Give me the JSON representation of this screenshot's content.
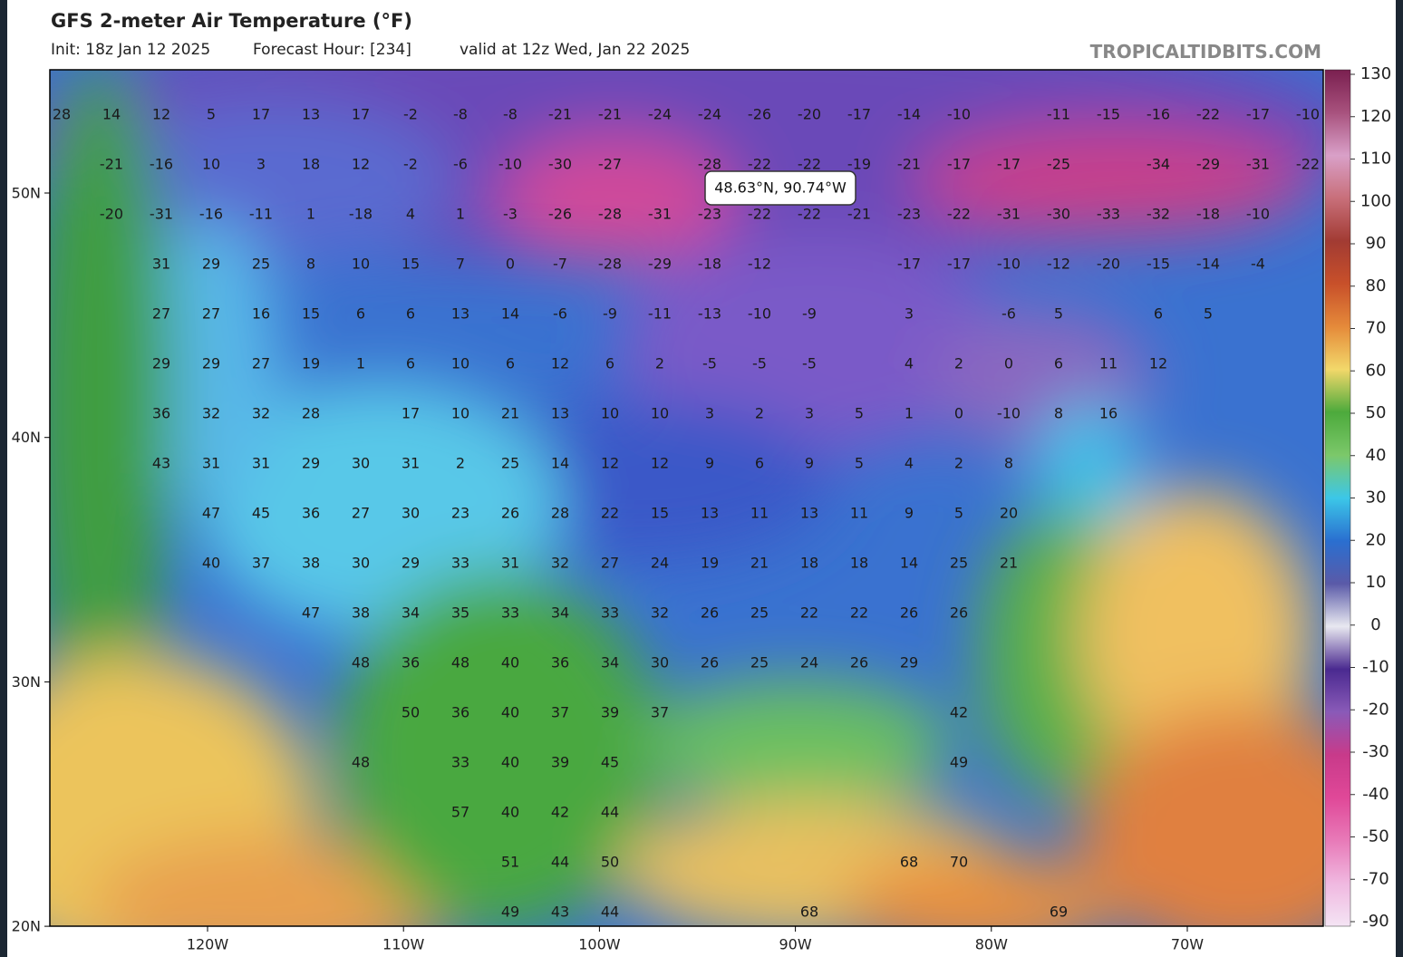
{
  "header": {
    "title": "GFS 2-meter Air Temperature (°F)",
    "init": "Init: 18z Jan 12 2025",
    "forecast_hour": "Forecast Hour: [234]",
    "valid": "valid at 12z Wed, Jan 22 2025",
    "watermark": "TROPICALTIDBITS.COM"
  },
  "map": {
    "lat_labels": [
      "50N",
      "40N",
      "30N",
      "20N"
    ],
    "lon_labels": [
      "120W",
      "110W",
      "100W",
      "90W",
      "80W",
      "70W"
    ],
    "tooltip": "48.63°N, 90.74°W",
    "temperature_rows": [
      [
        28,
        14,
        12,
        5,
        17,
        13,
        17,
        -2,
        -8,
        -8,
        -21,
        -21,
        -24,
        -24,
        -26,
        -20,
        -17,
        -14,
        -10,
        null,
        -11,
        -15,
        -16,
        -22,
        -17,
        -10
      ],
      [
        null,
        -21,
        -16,
        10,
        3,
        18,
        12,
        -2,
        -6,
        -10,
        -30,
        -27,
        null,
        -28,
        -22,
        -22,
        -19,
        -21,
        -17,
        -17,
        -25,
        null,
        -34,
        -29,
        -31,
        -22
      ],
      [
        null,
        -20,
        -31,
        -16,
        -11,
        1,
        -18,
        4,
        1,
        -3,
        -26,
        -28,
        -31,
        -23,
        -22,
        -22,
        -21,
        -23,
        -22,
        -31,
        -30,
        -33,
        -32,
        -18,
        -10,
        null
      ],
      [
        null,
        null,
        31,
        29,
        25,
        8,
        10,
        15,
        7,
        0,
        -7,
        -28,
        -29,
        -18,
        -12,
        null,
        null,
        -17,
        -17,
        -10,
        -12,
        -20,
        -15,
        -14,
        -4,
        null
      ],
      [
        null,
        null,
        27,
        27,
        16,
        15,
        6,
        6,
        13,
        14,
        -6,
        -9,
        -11,
        -13,
        -10,
        -9,
        null,
        3,
        null,
        -6,
        5,
        null,
        6,
        5,
        null,
        null
      ],
      [
        null,
        null,
        29,
        29,
        27,
        19,
        1,
        6,
        10,
        6,
        12,
        6,
        2,
        -5,
        -5,
        -5,
        null,
        4,
        2,
        0,
        6,
        11,
        12,
        null,
        null,
        null
      ],
      [
        null,
        null,
        36,
        32,
        32,
        28,
        null,
        17,
        10,
        21,
        13,
        10,
        10,
        3,
        2,
        3,
        5,
        1,
        0,
        -10,
        8,
        16,
        null,
        null,
        null,
        null
      ],
      [
        null,
        null,
        43,
        31,
        31,
        29,
        30,
        31,
        2,
        25,
        14,
        12,
        12,
        9,
        6,
        9,
        5,
        4,
        2,
        8,
        null,
        null,
        null,
        null,
        null,
        null
      ],
      [
        null,
        null,
        null,
        47,
        45,
        36,
        27,
        30,
        23,
        26,
        28,
        22,
        15,
        13,
        11,
        13,
        11,
        9,
        5,
        20,
        null,
        null,
        null,
        null,
        null,
        null
      ],
      [
        null,
        null,
        null,
        40,
        37,
        38,
        30,
        29,
        33,
        31,
        32,
        27,
        24,
        19,
        21,
        18,
        18,
        14,
        25,
        21,
        null,
        null,
        null,
        null,
        null,
        null
      ],
      [
        null,
        null,
        null,
        null,
        null,
        47,
        38,
        34,
        35,
        33,
        34,
        33,
        32,
        26,
        25,
        22,
        22,
        26,
        26,
        null,
        null,
        null,
        null,
        null,
        null,
        null
      ],
      [
        null,
        null,
        null,
        null,
        null,
        null,
        48,
        36,
        48,
        40,
        36,
        34,
        30,
        26,
        25,
        24,
        26,
        29,
        null,
        null,
        null,
        null,
        null,
        null,
        null,
        null
      ],
      [
        null,
        null,
        null,
        null,
        null,
        null,
        null,
        50,
        36,
        40,
        37,
        39,
        37,
        null,
        null,
        null,
        null,
        null,
        42,
        null,
        null,
        null,
        null,
        null,
        null,
        null
      ],
      [
        null,
        null,
        null,
        null,
        null,
        null,
        48,
        null,
        33,
        40,
        39,
        45,
        null,
        null,
        null,
        null,
        null,
        null,
        49,
        null,
        null,
        null,
        null,
        null,
        null,
        null
      ],
      [
        null,
        null,
        null,
        null,
        null,
        null,
        null,
        null,
        57,
        40,
        42,
        44,
        null,
        null,
        null,
        null,
        null,
        null,
        null,
        null,
        null,
        null,
        null,
        null,
        null,
        null
      ],
      [
        null,
        null,
        null,
        null,
        null,
        null,
        null,
        null,
        null,
        51,
        44,
        50,
        null,
        null,
        null,
        null,
        null,
        68,
        70,
        null,
        null,
        null,
        null,
        null,
        null,
        null
      ],
      [
        null,
        null,
        null,
        null,
        null,
        null,
        null,
        null,
        null,
        49,
        43,
        44,
        null,
        null,
        null,
        68,
        null,
        null,
        null,
        null,
        69,
        null,
        null,
        null,
        null,
        null
      ]
    ]
  },
  "colorbar": {
    "ticks": [
      130,
      120,
      110,
      100,
      90,
      80,
      70,
      60,
      50,
      40,
      30,
      20,
      10,
      0,
      -10,
      -20,
      -30,
      -40,
      -50,
      -70,
      -90
    ],
    "colors": [
      "#7a1f4f",
      "#a8527e",
      "#d9a0c8",
      "#c86f7a",
      "#a23b33",
      "#c8502a",
      "#e58a3a",
      "#f2d86a",
      "#4caa3c",
      "#7cc86a",
      "#3cc7e8",
      "#2a6fd0",
      "#5a5aa8",
      "#e8e8f0",
      "#4a2a90",
      "#8a5ab8",
      "#c83a8a",
      "#e04898",
      "#e87ab8",
      "#f0b8e0",
      "#f4e4f4"
    ]
  }
}
